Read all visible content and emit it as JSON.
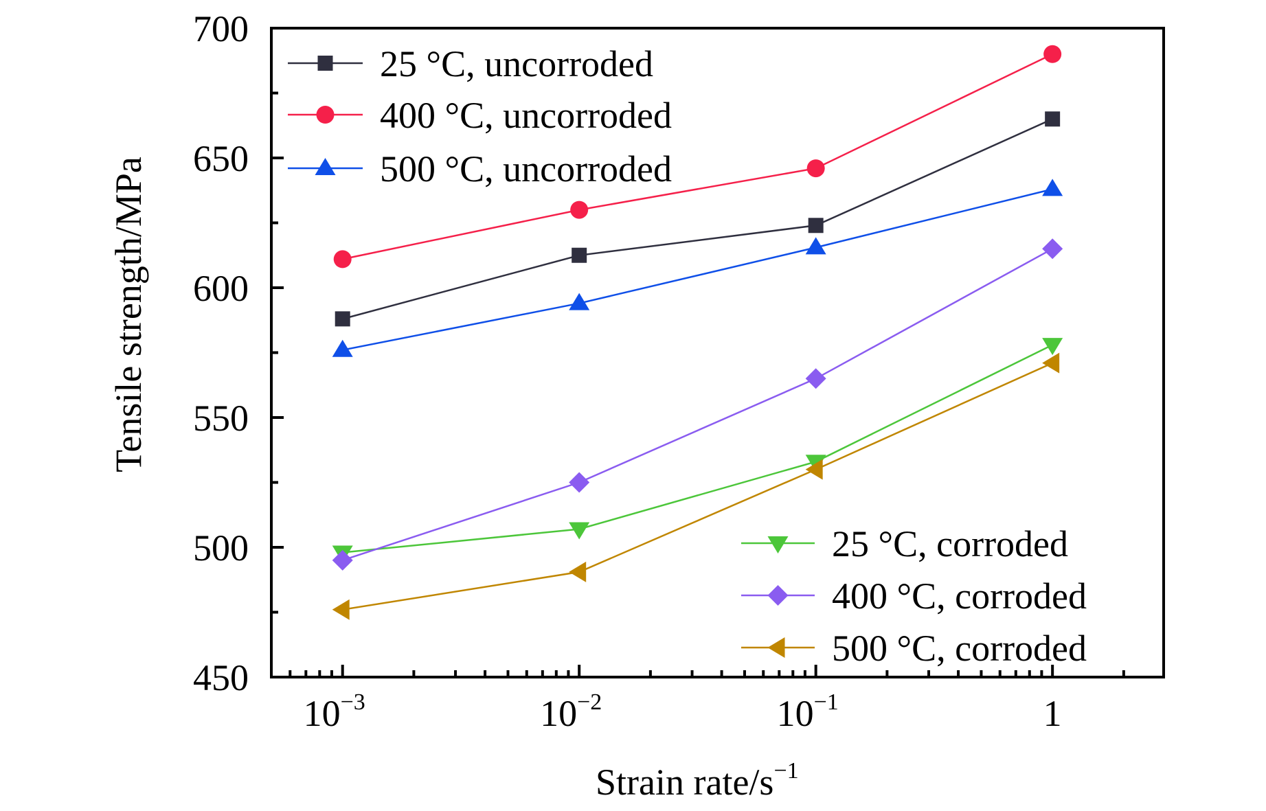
{
  "chart_data": {
    "type": "line",
    "title": "",
    "xlabel": "Strain rate/s",
    "xlabel_superscript": "−1",
    "ylabel": "Tensile strength/MPa",
    "x_scale": "log",
    "x": [
      0.001,
      0.01,
      0.1,
      1
    ],
    "x_tick_labels": [
      {
        "base": "10",
        "exp": "−3"
      },
      {
        "base": "10",
        "exp": "−2"
      },
      {
        "base": "10",
        "exp": "−1"
      },
      {
        "base": "1",
        "exp": ""
      }
    ],
    "xlim": [
      0.0005,
      2.95
    ],
    "ylim": [
      450,
      700
    ],
    "y_ticks": [
      450,
      500,
      550,
      600,
      650,
      700
    ],
    "y_minor_step": 25,
    "grid": false,
    "series": [
      {
        "name": "25 °C, uncorroded",
        "marker": "square",
        "color": "#2f2f3f",
        "values": [
          588,
          612.5,
          624,
          665
        ]
      },
      {
        "name": "400 °C, uncorroded",
        "marker": "circle",
        "color": "#f5204a",
        "values": [
          611,
          630,
          646,
          690
        ]
      },
      {
        "name": "500 °C, uncorroded",
        "marker": "triangle-up",
        "color": "#0f4fe8",
        "values": [
          576,
          594,
          615.5,
          638
        ]
      },
      {
        "name": "25 °C, corroded",
        "marker": "triangle-down",
        "color": "#4cc63a",
        "values": [
          498,
          507,
          533,
          578
        ]
      },
      {
        "name": "400 °C, corroded",
        "marker": "diamond",
        "color": "#8a5cf0",
        "values": [
          495,
          525,
          565,
          615
        ]
      },
      {
        "name": "500 °C, corroded",
        "marker": "triangle-left",
        "color": "#c08600",
        "values": [
          476,
          490.5,
          530,
          571
        ]
      }
    ],
    "legends": [
      {
        "placement": "top-left",
        "series_index": [
          0,
          1,
          2
        ]
      },
      {
        "placement": "bottom-right",
        "series_index": [
          3,
          4,
          5
        ]
      }
    ]
  }
}
